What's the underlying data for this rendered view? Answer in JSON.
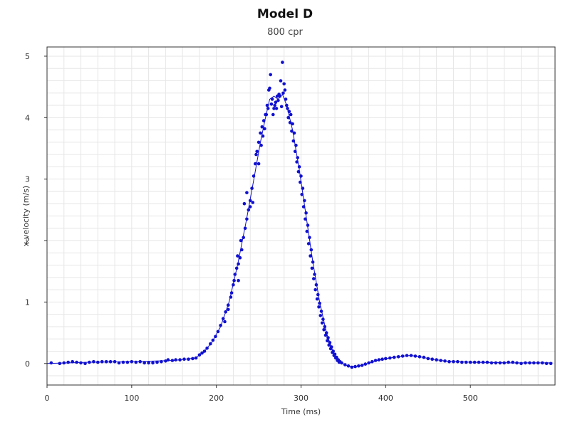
{
  "chart_data": {
    "type": "scatter",
    "title": "Model D",
    "subtitle": "800 cpr",
    "xlabel": "Time (ms)",
    "ylabel": "x-velocity (m/s)",
    "xlim": [
      0,
      600
    ],
    "ylim": [
      -0.35,
      5.15
    ],
    "xticks": [
      0,
      100,
      200,
      300,
      400,
      500
    ],
    "yticks": [
      0,
      1,
      2,
      3,
      4,
      5
    ],
    "grid": true,
    "colors": {
      "series": "#1010d0",
      "grid": "#e6e6e6",
      "axis": "#333333"
    },
    "series": [
      {
        "mode": "markers",
        "points": [
          [
            5,
            0.01
          ],
          [
            15,
            0.0
          ],
          [
            20,
            0.01
          ],
          [
            25,
            0.02
          ],
          [
            30,
            0.03
          ],
          [
            35,
            0.02
          ],
          [
            40,
            0.01
          ],
          [
            45,
            0.0
          ],
          [
            50,
            0.02
          ],
          [
            55,
            0.03
          ],
          [
            60,
            0.02
          ],
          [
            65,
            0.03
          ],
          [
            70,
            0.03
          ],
          [
            75,
            0.03
          ],
          [
            80,
            0.03
          ],
          [
            85,
            0.01
          ],
          [
            90,
            0.02
          ],
          [
            95,
            0.02
          ],
          [
            100,
            0.03
          ],
          [
            105,
            0.02
          ],
          [
            110,
            0.03
          ],
          [
            115,
            0.01
          ],
          [
            120,
            0.01
          ],
          [
            125,
            0.01
          ],
          [
            130,
            0.02
          ],
          [
            135,
            0.03
          ],
          [
            140,
            0.04
          ],
          [
            143,
            0.06
          ],
          [
            148,
            0.05
          ],
          [
            152,
            0.06
          ],
          [
            157,
            0.06
          ],
          [
            162,
            0.07
          ],
          [
            167,
            0.07
          ],
          [
            172,
            0.08
          ],
          [
            176,
            0.09
          ],
          [
            180,
            0.14
          ],
          [
            183,
            0.17
          ],
          [
            186,
            0.2
          ],
          [
            189,
            0.25
          ],
          [
            193,
            0.32
          ],
          [
            196,
            0.38
          ],
          [
            199,
            0.44
          ],
          [
            202,
            0.52
          ],
          [
            205,
            0.62
          ],
          [
            208,
            0.73
          ],
          [
            211,
            0.84
          ],
          [
            214,
            0.95
          ],
          [
            217,
            1.08
          ],
          [
            220,
            1.28
          ],
          [
            222,
            1.45
          ],
          [
            224,
            1.55
          ],
          [
            226,
            1.62
          ],
          [
            228,
            1.72
          ],
          [
            230,
            1.85
          ],
          [
            232,
            2.05
          ],
          [
            234,
            2.2
          ],
          [
            236,
            2.35
          ],
          [
            238,
            2.5
          ],
          [
            240,
            2.65
          ],
          [
            242,
            2.85
          ],
          [
            244,
            3.05
          ],
          [
            246,
            3.25
          ],
          [
            248,
            3.45
          ],
          [
            250,
            3.6
          ],
          [
            252,
            3.75
          ],
          [
            254,
            3.85
          ],
          [
            256,
            3.95
          ],
          [
            258,
            4.05
          ],
          [
            260,
            4.2
          ],
          [
            262,
            4.45
          ],
          [
            264,
            4.7
          ],
          [
            266,
            4.3
          ],
          [
            268,
            4.15
          ],
          [
            270,
            4.25
          ],
          [
            272,
            4.35
          ],
          [
            274,
            4.38
          ],
          [
            276,
            4.6
          ],
          [
            278,
            4.9
          ],
          [
            280,
            4.55
          ],
          [
            282,
            4.3
          ],
          [
            284,
            4.15
          ],
          [
            286,
            4.1
          ],
          [
            288,
            4.05
          ],
          [
            290,
            3.9
          ],
          [
            292,
            3.75
          ],
          [
            294,
            3.55
          ],
          [
            296,
            3.35
          ],
          [
            298,
            3.2
          ],
          [
            300,
            3.05
          ],
          [
            302,
            2.85
          ],
          [
            304,
            2.65
          ],
          [
            306,
            2.45
          ],
          [
            308,
            2.25
          ],
          [
            310,
            2.05
          ],
          [
            312,
            1.85
          ],
          [
            314,
            1.65
          ],
          [
            316,
            1.45
          ],
          [
            318,
            1.28
          ],
          [
            320,
            1.12
          ],
          [
            322,
            0.98
          ],
          [
            324,
            0.85
          ],
          [
            326,
            0.72
          ],
          [
            328,
            0.6
          ],
          [
            330,
            0.5
          ],
          [
            332,
            0.42
          ],
          [
            334,
            0.34
          ],
          [
            336,
            0.27
          ],
          [
            338,
            0.2
          ],
          [
            340,
            0.15
          ],
          [
            342,
            0.1
          ],
          [
            344,
            0.06
          ],
          [
            346,
            0.03
          ],
          [
            348,
            0.01
          ],
          [
            352,
            -0.02
          ],
          [
            356,
            -0.04
          ],
          [
            360,
            -0.06
          ],
          [
            364,
            -0.05
          ],
          [
            368,
            -0.04
          ],
          [
            372,
            -0.03
          ],
          [
            376,
            -0.01
          ],
          [
            380,
            0.01
          ],
          [
            384,
            0.03
          ],
          [
            388,
            0.05
          ],
          [
            392,
            0.06
          ],
          [
            396,
            0.07
          ],
          [
            400,
            0.08
          ],
          [
            405,
            0.09
          ],
          [
            410,
            0.1
          ],
          [
            415,
            0.11
          ],
          [
            420,
            0.12
          ],
          [
            425,
            0.13
          ],
          [
            430,
            0.13
          ],
          [
            435,
            0.12
          ],
          [
            440,
            0.11
          ],
          [
            445,
            0.1
          ],
          [
            450,
            0.08
          ],
          [
            455,
            0.07
          ],
          [
            460,
            0.06
          ],
          [
            465,
            0.05
          ],
          [
            470,
            0.04
          ],
          [
            475,
            0.03
          ],
          [
            480,
            0.03
          ],
          [
            485,
            0.03
          ],
          [
            490,
            0.02
          ],
          [
            495,
            0.02
          ],
          [
            500,
            0.02
          ],
          [
            505,
            0.02
          ],
          [
            510,
            0.02
          ],
          [
            515,
            0.02
          ],
          [
            520,
            0.02
          ],
          [
            525,
            0.01
          ],
          [
            530,
            0.01
          ],
          [
            535,
            0.01
          ],
          [
            540,
            0.01
          ],
          [
            545,
            0.02
          ],
          [
            550,
            0.02
          ],
          [
            555,
            0.01
          ],
          [
            560,
            0.0
          ],
          [
            565,
            0.01
          ],
          [
            570,
            0.01
          ],
          [
            575,
            0.01
          ],
          [
            580,
            0.01
          ],
          [
            585,
            0.01
          ],
          [
            590,
            0.0
          ],
          [
            595,
            0.0
          ],
          [
            226,
            1.35
          ],
          [
            233,
            2.6
          ],
          [
            236,
            2.78
          ],
          [
            240,
            2.55
          ],
          [
            243,
            2.62
          ],
          [
            247,
            3.4
          ],
          [
            250,
            3.25
          ],
          [
            253,
            3.55
          ],
          [
            255,
            3.7
          ],
          [
            257,
            3.82
          ],
          [
            259,
            4.05
          ],
          [
            261,
            4.15
          ],
          [
            263,
            4.48
          ],
          [
            265,
            4.22
          ],
          [
            267,
            4.05
          ],
          [
            269,
            4.2
          ],
          [
            271,
            4.15
          ],
          [
            273,
            4.28
          ],
          [
            275,
            4.35
          ],
          [
            277,
            4.18
          ],
          [
            279,
            4.4
          ],
          [
            281,
            4.45
          ],
          [
            283,
            4.2
          ],
          [
            285,
            4.0
          ],
          [
            287,
            3.92
          ],
          [
            289,
            3.78
          ],
          [
            291,
            3.62
          ],
          [
            293,
            3.45
          ],
          [
            295,
            3.28
          ],
          [
            297,
            3.12
          ],
          [
            299,
            2.95
          ],
          [
            301,
            2.75
          ],
          [
            303,
            2.55
          ],
          [
            305,
            2.35
          ],
          [
            307,
            2.15
          ],
          [
            309,
            1.95
          ],
          [
            311,
            1.75
          ],
          [
            313,
            1.55
          ],
          [
            315,
            1.38
          ],
          [
            317,
            1.2
          ],
          [
            319,
            1.05
          ],
          [
            321,
            0.92
          ],
          [
            323,
            0.78
          ],
          [
            325,
            0.66
          ],
          [
            327,
            0.55
          ],
          [
            329,
            0.46
          ],
          [
            331,
            0.37
          ],
          [
            333,
            0.3
          ],
          [
            335,
            0.24
          ],
          [
            337,
            0.18
          ],
          [
            339,
            0.13
          ],
          [
            341,
            0.09
          ],
          [
            343,
            0.05
          ],
          [
            345,
            0.02
          ],
          [
            210,
            0.68
          ],
          [
            214,
            0.88
          ],
          [
            218,
            1.15
          ],
          [
            221,
            1.35
          ],
          [
            225,
            1.75
          ],
          [
            229,
            2.0
          ]
        ]
      },
      {
        "mode": "line",
        "points": [
          [
            0,
            0.0
          ],
          [
            50,
            0.02
          ],
          [
            100,
            0.03
          ],
          [
            150,
            0.05
          ],
          [
            175,
            0.09
          ],
          [
            185,
            0.18
          ],
          [
            195,
            0.35
          ],
          [
            205,
            0.6
          ],
          [
            215,
            1.0
          ],
          [
            225,
            1.6
          ],
          [
            235,
            2.3
          ],
          [
            245,
            3.05
          ],
          [
            252,
            3.6
          ],
          [
            258,
            4.0
          ],
          [
            263,
            4.3
          ],
          [
            268,
            4.35
          ],
          [
            273,
            4.3
          ],
          [
            278,
            4.38
          ],
          [
            283,
            4.2
          ],
          [
            290,
            3.8
          ],
          [
            298,
            3.15
          ],
          [
            306,
            2.4
          ],
          [
            314,
            1.65
          ],
          [
            322,
            1.0
          ],
          [
            330,
            0.5
          ],
          [
            338,
            0.18
          ],
          [
            346,
            0.02
          ],
          [
            355,
            -0.04
          ],
          [
            365,
            -0.05
          ],
          [
            375,
            -0.02
          ],
          [
            390,
            0.05
          ],
          [
            405,
            0.09
          ],
          [
            420,
            0.12
          ],
          [
            430,
            0.13
          ],
          [
            440,
            0.11
          ],
          [
            455,
            0.07
          ],
          [
            470,
            0.04
          ],
          [
            500,
            0.02
          ],
          [
            550,
            0.01
          ],
          [
            597,
            0.01
          ]
        ]
      }
    ]
  }
}
